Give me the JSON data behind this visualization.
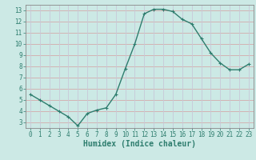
{
  "x": [
    0,
    1,
    2,
    3,
    4,
    5,
    6,
    7,
    8,
    9,
    10,
    11,
    12,
    13,
    14,
    15,
    16,
    17,
    18,
    19,
    20,
    21,
    22,
    23
  ],
  "y": [
    5.5,
    5.0,
    4.5,
    4.0,
    3.5,
    2.7,
    3.8,
    4.1,
    4.3,
    5.5,
    7.8,
    10.0,
    12.7,
    13.1,
    13.1,
    12.9,
    12.2,
    11.8,
    10.5,
    9.2,
    8.3,
    7.7,
    7.7,
    8.2
  ],
  "line_color": "#2e7d6e",
  "marker": "+",
  "marker_size": 3,
  "bg_color": "#cce9e5",
  "grid_color_h": "#d4aaaa",
  "grid_color_v": "#c8c8d8",
  "xlabel": "Humidex (Indice chaleur)",
  "xlim": [
    -0.5,
    23.5
  ],
  "ylim": [
    2.5,
    13.5
  ],
  "yticks": [
    3,
    4,
    5,
    6,
    7,
    8,
    9,
    10,
    11,
    12,
    13
  ],
  "xticks": [
    0,
    1,
    2,
    3,
    4,
    5,
    6,
    7,
    8,
    9,
    10,
    11,
    12,
    13,
    14,
    15,
    16,
    17,
    18,
    19,
    20,
    21,
    22,
    23
  ],
  "tick_fontsize": 5.5,
  "label_fontsize": 7.0,
  "line_width": 1.0,
  "spine_color": "#888888"
}
